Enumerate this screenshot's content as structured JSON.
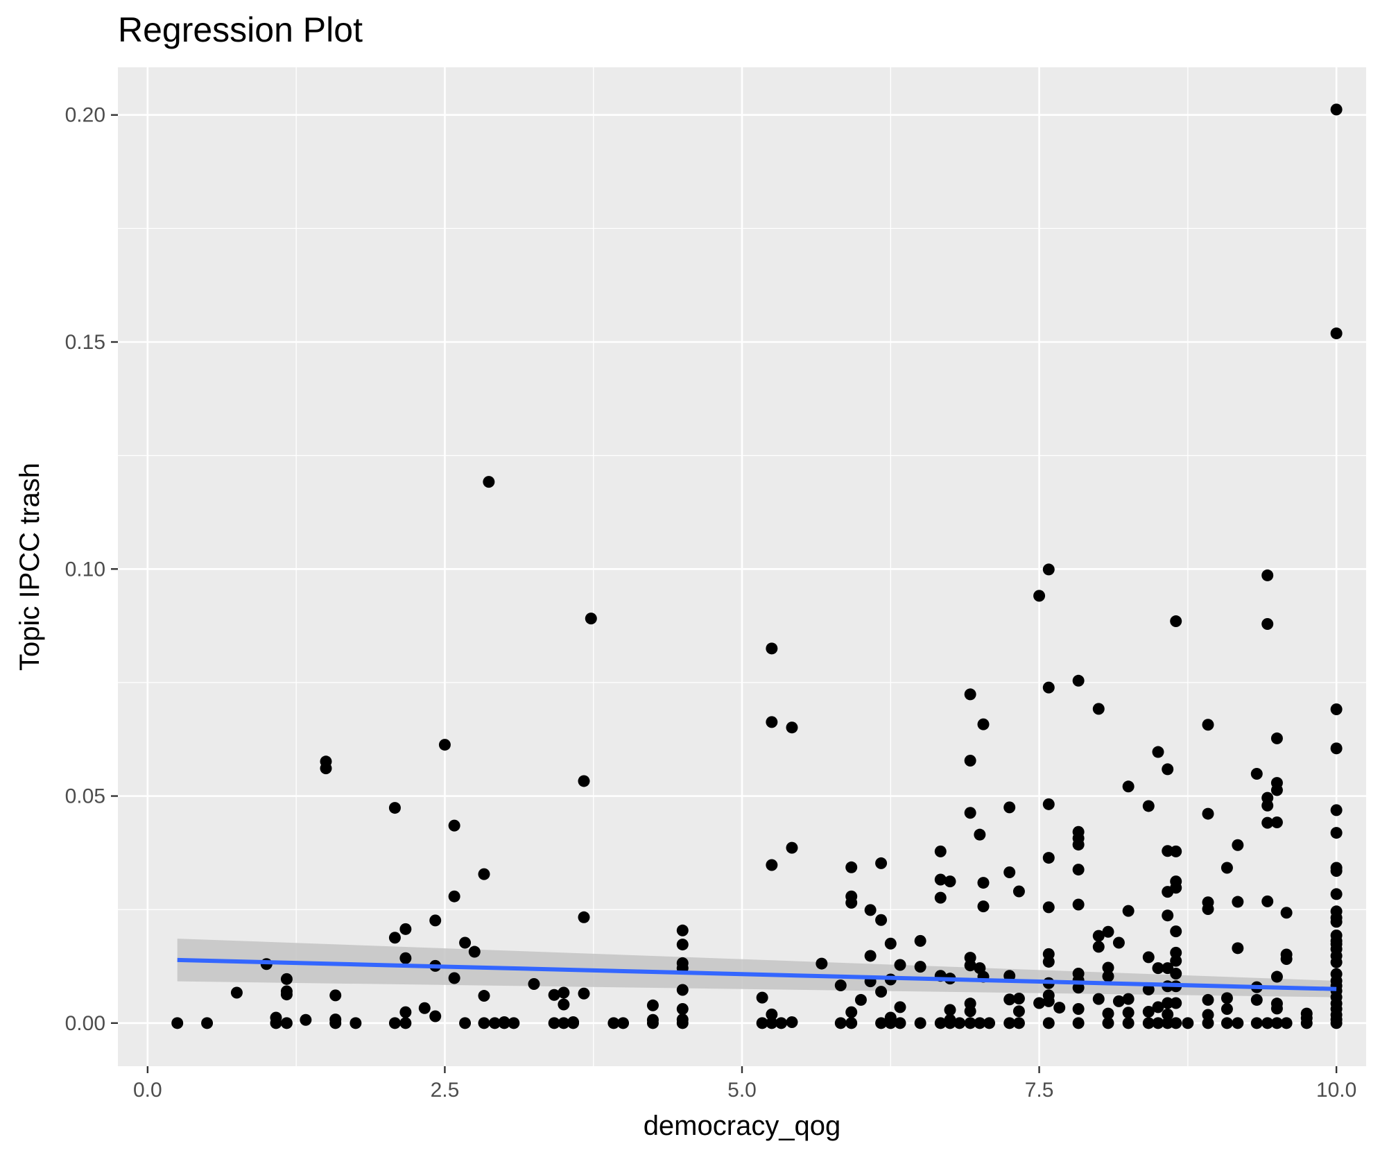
{
  "chart_data": {
    "type": "scatter",
    "title": "Regression Plot",
    "xlabel": "democracy_qog",
    "ylabel": "Topic IPCC trash",
    "xlim": [
      -0.25,
      10.25
    ],
    "ylim": [
      -0.0095,
      0.2105
    ],
    "x_ticks": [
      {
        "value": 0,
        "label": "0.0"
      },
      {
        "value": 2.5,
        "label": "2.5"
      },
      {
        "value": 5,
        "label": "5.0"
      },
      {
        "value": 7.5,
        "label": "7.5"
      },
      {
        "value": 10,
        "label": "10.0"
      }
    ],
    "y_ticks": [
      {
        "value": 0,
        "label": "0.00"
      },
      {
        "value": 0.05,
        "label": "0.05"
      },
      {
        "value": 0.1,
        "label": "0.10"
      },
      {
        "value": 0.15,
        "label": "0.15"
      },
      {
        "value": 0.2,
        "label": "0.20"
      }
    ],
    "x_minor": [
      1.25,
      3.75,
      6.25,
      8.75
    ],
    "y_minor": [
      0.025,
      0.075,
      0.125,
      0.175
    ],
    "grid": true,
    "colors": {
      "panel": "#ebebeb",
      "grid": "#ffffff",
      "points": "#000000",
      "fit_line": "#3366ff",
      "confidence_band": "#c4c4c4"
    },
    "points": [
      [
        0.25,
        0.0
      ],
      [
        0.5,
        0.0
      ],
      [
        0.75,
        0.0067
      ],
      [
        1.0,
        0.013
      ],
      [
        1.08,
        0.0
      ],
      [
        1.08,
        0.0012
      ],
      [
        1.17,
        0.0
      ],
      [
        1.17,
        0.0063
      ],
      [
        1.17,
        0.007
      ],
      [
        1.17,
        0.0097
      ],
      [
        1.33,
        0.0007
      ],
      [
        1.5,
        0.0576
      ],
      [
        1.5,
        0.0561
      ],
      [
        1.58,
        0.0
      ],
      [
        1.58,
        0.0008
      ],
      [
        1.58,
        0.0061
      ],
      [
        1.75,
        0.0
      ],
      [
        2.08,
        0.0
      ],
      [
        2.08,
        0.0474
      ],
      [
        2.08,
        0.0188
      ],
      [
        2.17,
        0.0207
      ],
      [
        2.17,
        0.0143
      ],
      [
        2.17,
        0.0024
      ],
      [
        2.17,
        0.0
      ],
      [
        2.33,
        0.0033
      ],
      [
        2.42,
        0.0015
      ],
      [
        2.42,
        0.0126
      ],
      [
        2.42,
        0.0226
      ],
      [
        2.5,
        0.0613
      ],
      [
        2.58,
        0.0435
      ],
      [
        2.58,
        0.0279
      ],
      [
        2.58,
        0.0099
      ],
      [
        2.67,
        0.0177
      ],
      [
        2.67,
        0.0
      ],
      [
        2.75,
        0.0157
      ],
      [
        2.83,
        0.0328
      ],
      [
        2.83,
        0.006
      ],
      [
        2.83,
        0.0
      ],
      [
        2.87,
        0.1192
      ],
      [
        2.92,
        0.0
      ],
      [
        3.0,
        0.0
      ],
      [
        3.0,
        0.0002
      ],
      [
        3.08,
        0.0
      ],
      [
        3.25,
        0.0086
      ],
      [
        3.42,
        0.0062
      ],
      [
        3.42,
        0.0
      ],
      [
        3.5,
        0.0067
      ],
      [
        3.5,
        0.0041
      ],
      [
        3.5,
        0.0
      ],
      [
        3.58,
        0.0
      ],
      [
        3.58,
        0.0002
      ],
      [
        3.67,
        0.0533
      ],
      [
        3.67,
        0.0233
      ],
      [
        3.67,
        0.0065
      ],
      [
        3.73,
        0.0891
      ],
      [
        3.92,
        0.0
      ],
      [
        4.0,
        0.0
      ],
      [
        4.25,
        0.0039
      ],
      [
        4.25,
        0.0
      ],
      [
        4.25,
        0.0007
      ],
      [
        4.5,
        0.0204
      ],
      [
        4.5,
        0.0173
      ],
      [
        4.5,
        0.0132
      ],
      [
        4.5,
        0.0121
      ],
      [
        4.5,
        0.0073
      ],
      [
        4.5,
        0.0031
      ],
      [
        4.5,
        0.0008
      ],
      [
        4.5,
        0.0
      ],
      [
        5.17,
        0.0056
      ],
      [
        5.17,
        0.0
      ],
      [
        5.25,
        0.0825
      ],
      [
        5.25,
        0.0663
      ],
      [
        5.25,
        0.0348
      ],
      [
        5.25,
        0.0019
      ],
      [
        5.25,
        0.0
      ],
      [
        5.33,
        0.0
      ],
      [
        5.42,
        0.0651
      ],
      [
        5.42,
        0.0386
      ],
      [
        5.42,
        0.0002
      ],
      [
        5.67,
        0.0131
      ],
      [
        5.83,
        0.0083
      ],
      [
        5.83,
        0.0
      ],
      [
        5.92,
        0.0343
      ],
      [
        5.92,
        0.0279
      ],
      [
        5.92,
        0.0265
      ],
      [
        5.92,
        0.0024
      ],
      [
        5.92,
        0.0
      ],
      [
        6.0,
        0.0051
      ],
      [
        6.08,
        0.0249
      ],
      [
        6.08,
        0.0148
      ],
      [
        6.08,
        0.0092
      ],
      [
        6.17,
        0.0352
      ],
      [
        6.17,
        0.0227
      ],
      [
        6.17,
        0.0069
      ],
      [
        6.17,
        0.0
      ],
      [
        6.25,
        0.0175
      ],
      [
        6.25,
        0.0096
      ],
      [
        6.25,
        0.0012
      ],
      [
        6.25,
        0.0
      ],
      [
        6.33,
        0.0128
      ],
      [
        6.33,
        0.0035
      ],
      [
        6.33,
        0.0
      ],
      [
        6.5,
        0.0181
      ],
      [
        6.5,
        0.0124
      ],
      [
        6.5,
        0.0
      ],
      [
        6.67,
        0.0378
      ],
      [
        6.67,
        0.0316
      ],
      [
        6.67,
        0.0276
      ],
      [
        6.67,
        0.0104
      ],
      [
        6.67,
        0.0
      ],
      [
        6.75,
        0.0312
      ],
      [
        6.75,
        0.0098
      ],
      [
        6.75,
        0.0029
      ],
      [
        6.75,
        0.0007
      ],
      [
        6.75,
        0.0
      ],
      [
        6.83,
        0.0
      ],
      [
        6.92,
        0.0724
      ],
      [
        6.92,
        0.0578
      ],
      [
        6.92,
        0.0463
      ],
      [
        6.92,
        0.0144
      ],
      [
        6.92,
        0.0127
      ],
      [
        6.92,
        0.0043
      ],
      [
        6.92,
        0.0026
      ],
      [
        6.92,
        0.0
      ],
      [
        7.0,
        0.0415
      ],
      [
        7.0,
        0.0121
      ],
      [
        7.0,
        0.0
      ],
      [
        7.03,
        0.0658
      ],
      [
        7.03,
        0.0309
      ],
      [
        7.03,
        0.0257
      ],
      [
        7.03,
        0.0102
      ],
      [
        7.08,
        0.0
      ],
      [
        7.25,
        0.0475
      ],
      [
        7.25,
        0.0332
      ],
      [
        7.25,
        0.0104
      ],
      [
        7.25,
        0.0052
      ],
      [
        7.25,
        0.0
      ],
      [
        7.33,
        0.029
      ],
      [
        7.33,
        0.0054
      ],
      [
        7.33,
        0.0026
      ],
      [
        7.33,
        0.0
      ],
      [
        7.5,
        0.0941
      ],
      [
        7.5,
        0.0044
      ],
      [
        7.58,
        0.0999
      ],
      [
        7.58,
        0.0739
      ],
      [
        7.58,
        0.0482
      ],
      [
        7.58,
        0.0364
      ],
      [
        7.58,
        0.0255
      ],
      [
        7.58,
        0.0152
      ],
      [
        7.58,
        0.0135
      ],
      [
        7.58,
        0.0088
      ],
      [
        7.58,
        0.0061
      ],
      [
        7.58,
        0.0048
      ],
      [
        7.58,
        0.0
      ],
      [
        7.67,
        0.0034
      ],
      [
        7.83,
        0.0754
      ],
      [
        7.83,
        0.0421
      ],
      [
        7.83,
        0.0407
      ],
      [
        7.83,
        0.0393
      ],
      [
        7.83,
        0.0338
      ],
      [
        7.83,
        0.0261
      ],
      [
        7.83,
        0.0109
      ],
      [
        7.83,
        0.0094
      ],
      [
        7.83,
        0.0078
      ],
      [
        7.83,
        0.0031
      ],
      [
        7.83,
        0.0
      ],
      [
        8.0,
        0.0692
      ],
      [
        8.0,
        0.0192
      ],
      [
        8.0,
        0.0168
      ],
      [
        8.0,
        0.0053
      ],
      [
        8.08,
        0.0201
      ],
      [
        8.08,
        0.0122
      ],
      [
        8.08,
        0.0103
      ],
      [
        8.08,
        0.0021
      ],
      [
        8.08,
        0.0
      ],
      [
        8.17,
        0.0177
      ],
      [
        8.17,
        0.0048
      ],
      [
        8.25,
        0.0521
      ],
      [
        8.25,
        0.0247
      ],
      [
        8.25,
        0.0053
      ],
      [
        8.25,
        0.0023
      ],
      [
        8.25,
        0.0
      ],
      [
        8.42,
        0.0478
      ],
      [
        8.42,
        0.0145
      ],
      [
        8.42,
        0.0074
      ],
      [
        8.42,
        0.0025
      ],
      [
        8.42,
        0.0
      ],
      [
        8.5,
        0.0597
      ],
      [
        8.5,
        0.0121
      ],
      [
        8.5,
        0.0035
      ],
      [
        8.5,
        0.0
      ],
      [
        8.58,
        0.0559
      ],
      [
        8.58,
        0.0379
      ],
      [
        8.58,
        0.0289
      ],
      [
        8.58,
        0.0237
      ],
      [
        8.58,
        0.0121
      ],
      [
        8.58,
        0.0081
      ],
      [
        8.58,
        0.0044
      ],
      [
        8.58,
        0.0019
      ],
      [
        8.58,
        0.0
      ],
      [
        8.65,
        0.0885
      ],
      [
        8.65,
        0.0378
      ],
      [
        8.65,
        0.0312
      ],
      [
        8.65,
        0.0298
      ],
      [
        8.65,
        0.0202
      ],
      [
        8.65,
        0.0155
      ],
      [
        8.65,
        0.0137
      ],
      [
        8.65,
        0.0109
      ],
      [
        8.65,
        0.0081
      ],
      [
        8.65,
        0.0044
      ],
      [
        8.65,
        0.0
      ],
      [
        8.75,
        0.0
      ],
      [
        8.92,
        0.0657
      ],
      [
        8.92,
        0.0461
      ],
      [
        8.92,
        0.0266
      ],
      [
        8.92,
        0.0251
      ],
      [
        8.92,
        0.0051
      ],
      [
        8.92,
        0.0018
      ],
      [
        8.92,
        0.0
      ],
      [
        9.08,
        0.0342
      ],
      [
        9.08,
        0.0055
      ],
      [
        9.08,
        0.0031
      ],
      [
        9.08,
        0.0
      ],
      [
        9.17,
        0.0392
      ],
      [
        9.17,
        0.0267
      ],
      [
        9.17,
        0.0165
      ],
      [
        9.17,
        0.0
      ],
      [
        9.33,
        0.0549
      ],
      [
        9.33,
        0.0079
      ],
      [
        9.33,
        0.0051
      ],
      [
        9.33,
        0.0
      ],
      [
        9.42,
        0.0986
      ],
      [
        9.42,
        0.0879
      ],
      [
        9.42,
        0.0496
      ],
      [
        9.42,
        0.0479
      ],
      [
        9.42,
        0.0441
      ],
      [
        9.42,
        0.0268
      ],
      [
        9.42,
        0.0
      ],
      [
        9.5,
        0.0627
      ],
      [
        9.5,
        0.0529
      ],
      [
        9.5,
        0.0513
      ],
      [
        9.5,
        0.0442
      ],
      [
        9.5,
        0.0102
      ],
      [
        9.5,
        0.0043
      ],
      [
        9.5,
        0.0032
      ],
      [
        9.5,
        0.0
      ],
      [
        9.58,
        0.0243
      ],
      [
        9.58,
        0.0151
      ],
      [
        9.58,
        0.0141
      ],
      [
        9.58,
        0.0
      ],
      [
        9.75,
        0.0021
      ],
      [
        9.75,
        0.0011
      ],
      [
        9.75,
        0.0
      ],
      [
        10.0,
        0.2012
      ],
      [
        10.0,
        0.1519
      ],
      [
        10.0,
        0.0691
      ],
      [
        10.0,
        0.0605
      ],
      [
        10.0,
        0.0469
      ],
      [
        10.0,
        0.0419
      ],
      [
        10.0,
        0.0342
      ],
      [
        10.0,
        0.0335
      ],
      [
        10.0,
        0.0284
      ],
      [
        10.0,
        0.0246
      ],
      [
        10.0,
        0.0232
      ],
      [
        10.0,
        0.0223
      ],
      [
        10.0,
        0.0193
      ],
      [
        10.0,
        0.0181
      ],
      [
        10.0,
        0.0174
      ],
      [
        10.0,
        0.0163
      ],
      [
        10.0,
        0.0148
      ],
      [
        10.0,
        0.0134
      ],
      [
        10.0,
        0.0108
      ],
      [
        10.0,
        0.0093
      ],
      [
        10.0,
        0.0082
      ],
      [
        10.0,
        0.0071
      ],
      [
        10.0,
        0.0057
      ],
      [
        10.0,
        0.0043
      ],
      [
        10.0,
        0.0031
      ],
      [
        10.0,
        0.0018
      ],
      [
        10.0,
        0.0008
      ],
      [
        10.0,
        0.0
      ]
    ],
    "fit": {
      "x": [
        0.25,
        10.0
      ],
      "y": [
        0.0139,
        0.0075
      ],
      "lower": [
        0.0092,
        0.0057
      ],
      "upper": [
        0.0186,
        0.0093
      ]
    }
  }
}
